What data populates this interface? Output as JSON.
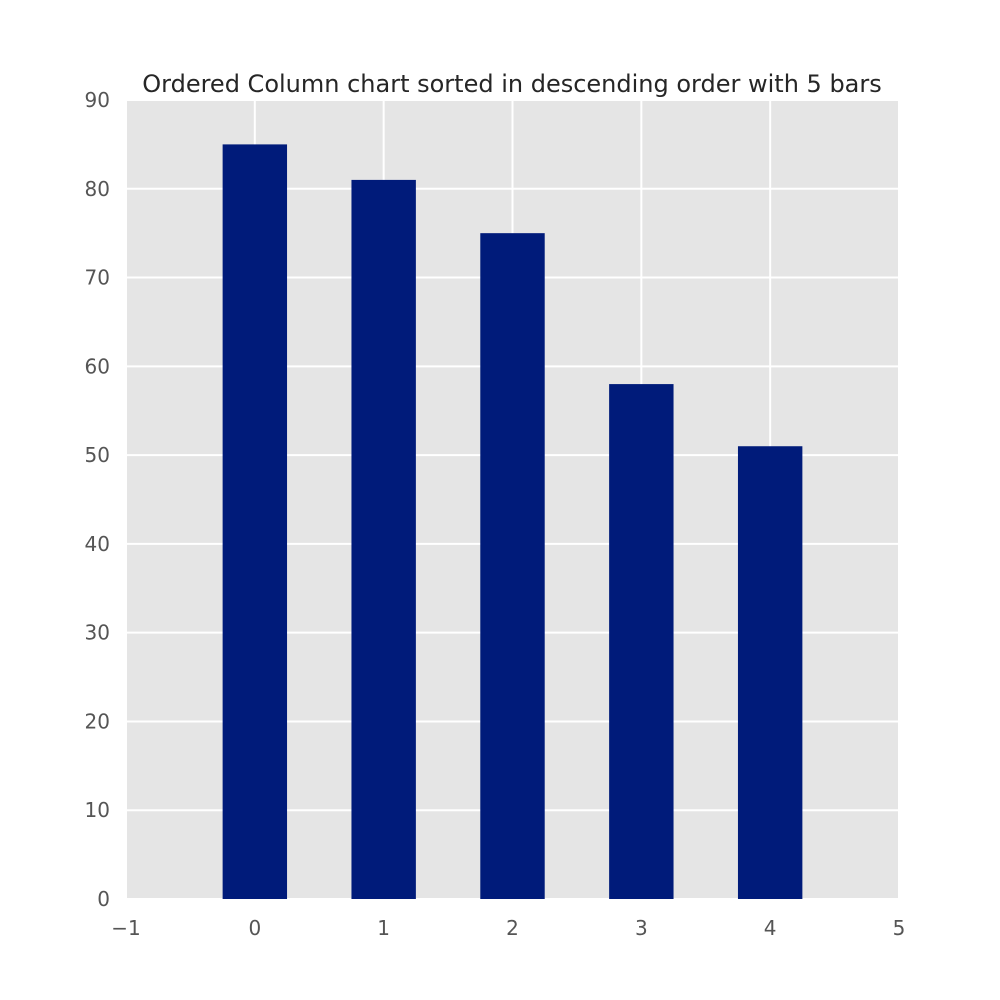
{
  "chart_data": {
    "type": "bar",
    "title": "Ordered Column chart sorted in descending order with 5 bars",
    "xlabel": "",
    "ylabel": "",
    "x": [
      0,
      1,
      2,
      3,
      4
    ],
    "values": [
      85,
      81,
      75,
      58,
      51
    ],
    "bar_width": 0.5,
    "xlim": [
      -1,
      5
    ],
    "ylim": [
      0,
      90
    ],
    "xticks": [
      -1,
      0,
      1,
      2,
      3,
      4,
      5
    ],
    "xtick_labels": [
      "−1",
      "0",
      "1",
      "2",
      "3",
      "4",
      "5"
    ],
    "yticks": [
      0,
      10,
      20,
      30,
      40,
      50,
      60,
      70,
      80,
      90
    ],
    "ytick_labels": [
      "0",
      "10",
      "20",
      "30",
      "40",
      "50",
      "60",
      "70",
      "80",
      "90"
    ],
    "grid": true,
    "legend": "none",
    "colors": {
      "bar": "#001b7a",
      "plot_background": "#e5e5e5",
      "grid": "#ffffff",
      "tick_label": "#555555",
      "title": "#262626"
    }
  }
}
